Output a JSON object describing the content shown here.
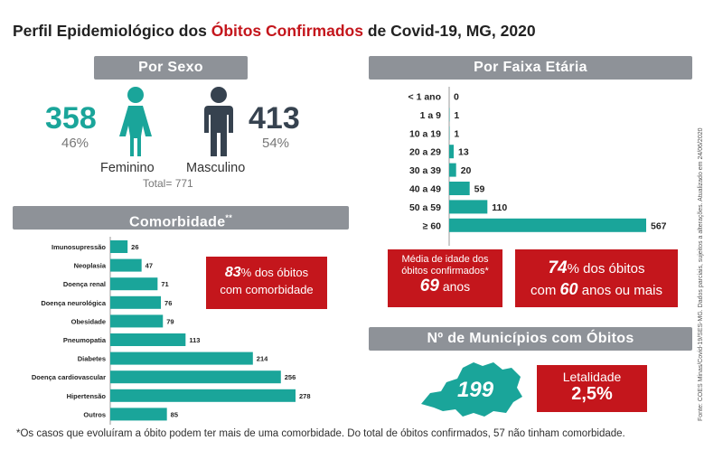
{
  "title": {
    "part1": "Perfil Epidemiológico dos ",
    "accent": "Óbitos Confirmados",
    "part2": " de Covid-19, MG, 2020"
  },
  "sexo": {
    "header": "Por Sexo",
    "feminino": {
      "count": "358",
      "pct": "46%",
      "label": "Feminino"
    },
    "masculino": {
      "count": "413",
      "pct": "54%",
      "label": "Masculino"
    },
    "total": "Total= 771"
  },
  "comorb": {
    "header": "Comorbidade",
    "header_mark": "**",
    "callout": {
      "pct": "83",
      "line1": "% dos óbitos",
      "line2": "com comorbidade"
    }
  },
  "faixa": {
    "header": "Por Faixa Etária",
    "media": {
      "line1": "Média de idade dos",
      "line2": "óbitos confirmados*",
      "value": "69",
      "unit": " anos"
    },
    "pct60": {
      "pct": "74",
      "line1": "% dos óbitos",
      "line2a": "com ",
      "value": "60",
      "line2b": " anos ou mais"
    }
  },
  "municipios": {
    "header": "Nº de Municípios com Óbitos",
    "count": "199",
    "letalidade_label": "Letalidade",
    "letalidade_value": "2,5%"
  },
  "footnote": "*Os casos que evoluíram a óbito podem ter mais de uma comorbidade. Do total de óbitos confirmados, 57 não tinham comorbidade.",
  "source": "Fonte: COES Minas/Covid-19/SES-MG. Dados parciais, sujeitos a alterações. Atualizado em 24/06/2020",
  "colors": {
    "teal": "#1aa59a",
    "red": "#c4161c",
    "gray_header": "#8e9298",
    "navy": "#36424f"
  },
  "chart_data": [
    {
      "type": "bar",
      "orientation": "horizontal",
      "categories": [
        "Imunosupressão",
        "Neoplasia",
        "Doença renal",
        "Doença neurológica",
        "Obesidade",
        "Pneumopatia",
        "Diabetes",
        "Doença cardiovascular",
        "Hipertensão",
        "Outros"
      ],
      "values": [
        26,
        47,
        71,
        76,
        79,
        113,
        214,
        256,
        278,
        85
      ],
      "title": "Comorbidade"
    },
    {
      "type": "bar",
      "orientation": "horizontal",
      "categories": [
        "< 1 ano",
        "1 a 9",
        "10 a 19",
        "20 a 29",
        "30 a 39",
        "40 a 49",
        "50 a 59",
        "≥ 60"
      ],
      "values": [
        0,
        1,
        1,
        13,
        20,
        59,
        110,
        567
      ],
      "title": "Por Faixa Etária"
    }
  ]
}
